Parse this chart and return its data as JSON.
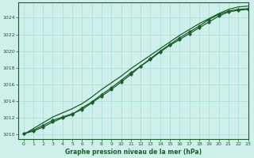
{
  "title": "Graphe pression niveau de la mer (hPa)",
  "background_color": "#cff0ea",
  "plot_bg_color": "#cff0ea",
  "grid_color": "#a8ddd6",
  "line_color": "#1a5c2a",
  "marker_color": "#1a5c2a",
  "xlim": [
    -0.5,
    23
  ],
  "ylim": [
    1009.5,
    1025.8
  ],
  "yticks": [
    1010,
    1012,
    1014,
    1016,
    1018,
    1020,
    1022,
    1024
  ],
  "xticks": [
    0,
    1,
    2,
    3,
    4,
    5,
    6,
    7,
    8,
    9,
    10,
    11,
    12,
    13,
    14,
    15,
    16,
    17,
    18,
    19,
    20,
    21,
    22,
    23
  ],
  "series1_x": [
    0,
    1,
    2,
    3,
    4,
    5,
    6,
    7,
    8,
    9,
    10,
    11,
    12,
    13,
    14,
    15,
    16,
    17,
    18,
    19,
    20,
    21,
    22,
    23
  ],
  "series1_y": [
    1010.1,
    1010.4,
    1010.9,
    1011.5,
    1012.0,
    1012.4,
    1013.2,
    1013.9,
    1014.8,
    1015.6,
    1016.5,
    1017.4,
    1018.2,
    1019.0,
    1019.9,
    1020.7,
    1021.4,
    1022.1,
    1022.8,
    1023.5,
    1024.2,
    1024.7,
    1024.9,
    1025.0
  ],
  "series2_x": [
    0,
    1,
    2,
    3,
    4,
    5,
    6,
    7,
    8,
    9,
    10,
    11,
    12,
    13,
    14,
    15,
    16,
    17,
    18,
    19,
    20,
    21,
    22,
    23
  ],
  "series2_y": [
    1010.1,
    1010.5,
    1011.1,
    1011.7,
    1012.1,
    1012.5,
    1013.0,
    1013.8,
    1014.6,
    1015.4,
    1016.3,
    1017.2,
    1018.2,
    1019.1,
    1020.0,
    1020.8,
    1021.6,
    1022.3,
    1023.0,
    1023.8,
    1024.4,
    1024.8,
    1025.0,
    1025.1
  ],
  "series3_x": [
    0,
    1,
    2,
    3,
    4,
    5,
    6,
    7,
    8,
    9,
    10,
    11,
    12,
    13,
    14,
    15,
    16,
    17,
    18,
    19,
    20,
    21,
    22,
    23
  ],
  "series3_y": [
    1010.0,
    1010.7,
    1011.4,
    1012.1,
    1012.6,
    1013.1,
    1013.7,
    1014.5,
    1015.4,
    1016.2,
    1017.0,
    1017.9,
    1018.7,
    1019.5,
    1020.3,
    1021.1,
    1021.9,
    1022.6,
    1023.3,
    1023.9,
    1024.5,
    1025.0,
    1025.3,
    1025.4
  ]
}
